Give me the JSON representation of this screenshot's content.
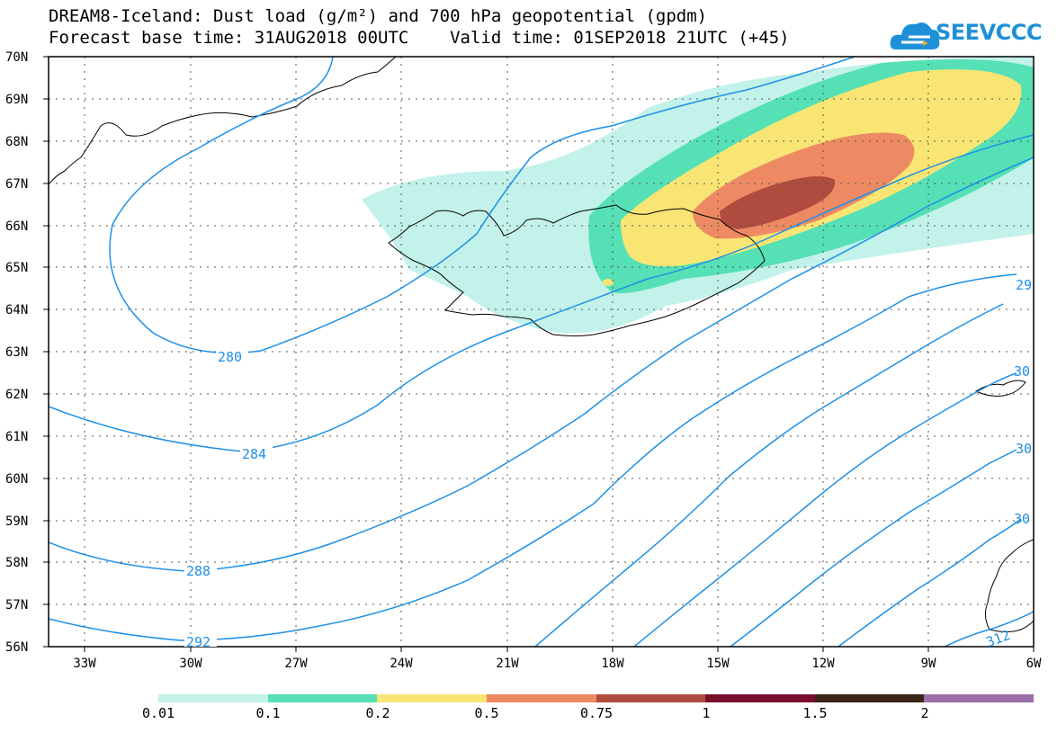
{
  "title": {
    "line1": "DREAM8-Iceland: Dust load (g/m²) and 700 hPa geopotential (gpdm)",
    "line2": "Forecast base time: 31AUG2018 00UTC    Valid time: 01SEP2018 21UTC (+45)"
  },
  "logo": {
    "text": "SEEVCCC"
  },
  "axes": {
    "lat_labels": [
      "70N",
      "69N",
      "68N",
      "67N",
      "66N",
      "65N",
      "64N",
      "63N",
      "62N",
      "61N",
      "60N",
      "59N",
      "58N",
      "57N",
      "56N"
    ],
    "lon_labels": [
      "33W",
      "30W",
      "27W",
      "24W",
      "21W",
      "18W",
      "15W",
      "12W",
      "9W",
      "6W"
    ]
  },
  "contours": {
    "labels": [
      "280",
      "284",
      "288",
      "292",
      "29",
      "30",
      "30",
      "30",
      "312"
    ]
  },
  "colorbar": {
    "colors": [
      "#c2f2ea",
      "#56e0b5",
      "#f8e573",
      "#ed8a63",
      "#b04c3f",
      "#7a0f2c",
      "#3a2417",
      "#9b6fa8"
    ],
    "labels": [
      "0.01",
      "0.1",
      "0.2",
      "0.5",
      "0.75",
      "1",
      "1.5",
      "2"
    ]
  }
}
